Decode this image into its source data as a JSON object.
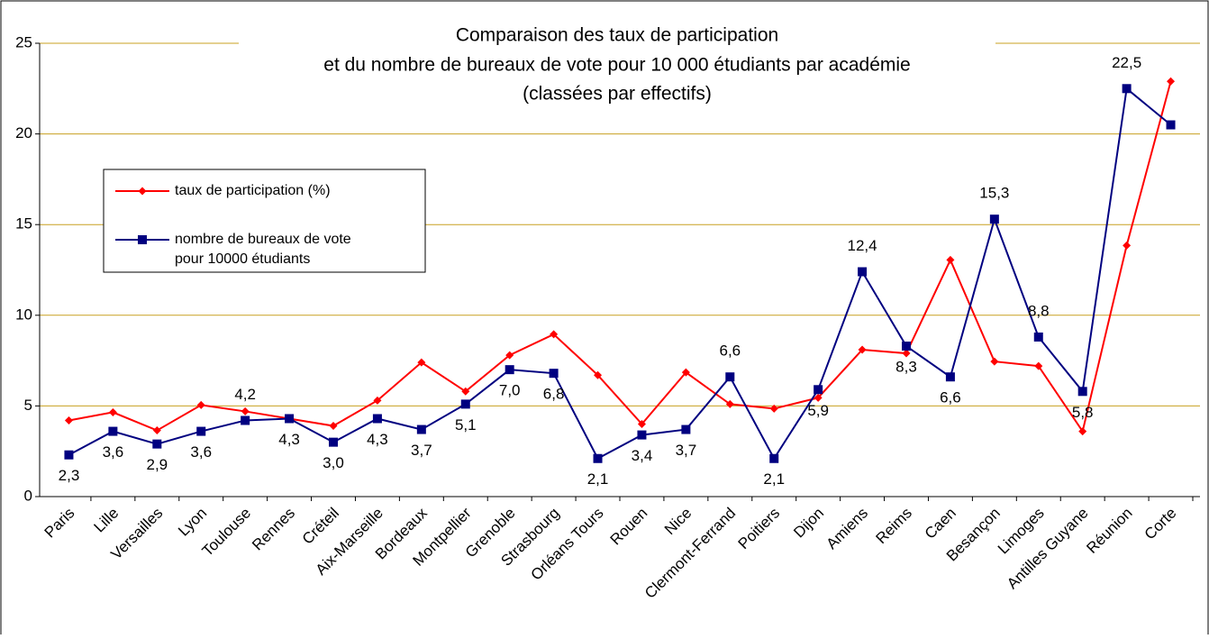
{
  "chart_data": {
    "type": "line",
    "title": "Comparaison des taux de participation",
    "subtitle": [
      "et du nombre de bureaux de vote pour 10 000 étudiants par académie",
      "(classées par effectifs)"
    ],
    "categories": [
      "Paris",
      "Lille",
      "Versailles",
      "Lyon",
      "Toulouse",
      "Rennes",
      "Créteil",
      "Aix-Marseille",
      "Bordeaux",
      "Montpellier",
      "Grenoble",
      "Strasbourg",
      "Orléans Tours",
      "Rouen",
      "Nice",
      "Clermont-Ferrand",
      "Poitiers",
      "Dijon",
      "Amiens",
      "Reims",
      "Caen",
      "Besançon",
      "Limoges",
      "Antilles Guyane",
      "Réunion",
      "Corte"
    ],
    "series": [
      {
        "name": "taux de participation (%)",
        "color": "#ff0000",
        "marker": "diamond",
        "values": [
          4.2,
          4.65,
          3.65,
          5.05,
          4.7,
          4.3,
          3.9,
          5.3,
          7.4,
          5.8,
          7.8,
          8.95,
          6.7,
          4.0,
          6.85,
          5.1,
          4.85,
          5.45,
          8.1,
          7.9,
          13.05,
          7.45,
          7.2,
          3.6,
          13.85,
          22.9
        ]
      },
      {
        "name": "nombre de bureaux de vote pour 10000 étudiants",
        "color": "#000080",
        "marker": "square",
        "values": [
          2.3,
          3.6,
          2.9,
          3.6,
          4.2,
          4.3,
          3.0,
          4.3,
          3.7,
          5.1,
          7.0,
          6.8,
          2.1,
          3.4,
          3.7,
          6.6,
          2.1,
          5.9,
          12.4,
          8.3,
          6.6,
          15.3,
          8.8,
          5.8,
          22.5,
          20.5
        ],
        "value_labels": [
          "2,3",
          "3,6",
          "2,9",
          "3,6",
          "4,2",
          "4,3",
          "3,0",
          "4,3",
          "3,7",
          "5,1",
          "7,0",
          "6,8",
          "2,1",
          "3,4",
          "3,7",
          "6,6",
          "2,1",
          "5,9",
          "12,4",
          "8,3",
          "6,6",
          "15,3",
          "8,8",
          "5,8",
          "22,5",
          null
        ]
      }
    ],
    "ylim": [
      0,
      25
    ],
    "yticks": [
      0,
      5,
      10,
      15,
      20,
      25
    ],
    "grid": true
  }
}
